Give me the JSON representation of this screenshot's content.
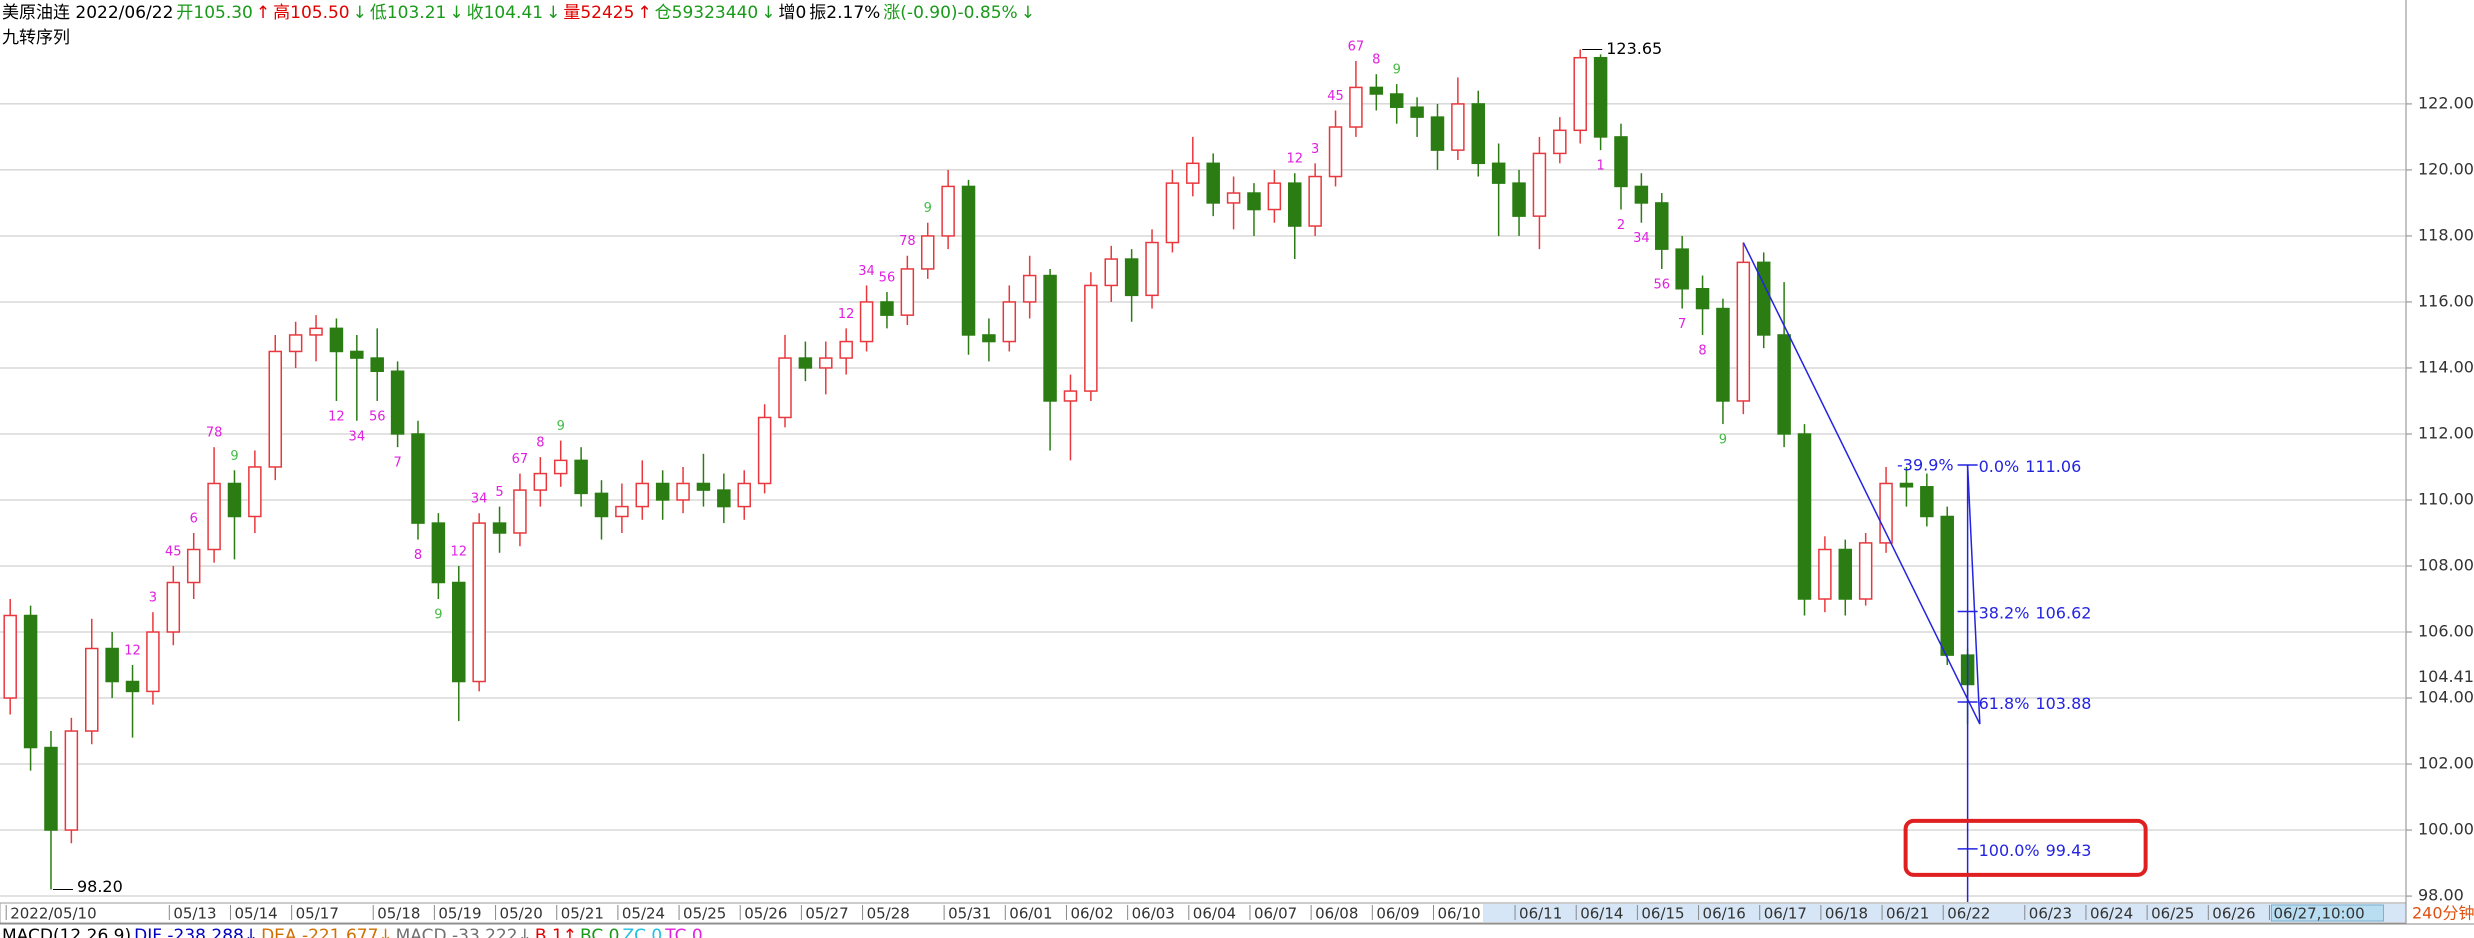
{
  "chart_data": {
    "type": "candlestick",
    "header": [
      {
        "text": "美原油连 2022/06/22",
        "color": "#000000"
      },
      {
        "text": "开105.30",
        "color": "#1a9a1a"
      },
      {
        "text": "↑",
        "color": "#e00000"
      },
      {
        "text": "高105.50",
        "color": "#e00000"
      },
      {
        "text": "↓",
        "color": "#1a9a1a"
      },
      {
        "text": "低103.21",
        "color": "#1a9a1a"
      },
      {
        "text": "↓",
        "color": "#1a9a1a"
      },
      {
        "text": "收104.41",
        "color": "#1a9a1a"
      },
      {
        "text": "↓",
        "color": "#1a9a1a"
      },
      {
        "text": "量52425",
        "color": "#e00000"
      },
      {
        "text": "↑",
        "color": "#e00000"
      },
      {
        "text": "仓59323440",
        "color": "#1a9a1a"
      },
      {
        "text": "↓",
        "color": "#1a9a1a"
      },
      {
        "text": "增0",
        "color": "#000000"
      },
      {
        "text": "振2.17%",
        "color": "#000000"
      },
      {
        "text": "涨(-0.90)-0.85%",
        "color": "#1a9a1a"
      },
      {
        "text": "↓",
        "color": "#1a9a1a"
      }
    ],
    "indicator": "九转序列",
    "footer": [
      {
        "text": "MACD(12,26,9)",
        "color": "#000000"
      },
      {
        "text": "DIF -238.288↓",
        "color": "#0000c0"
      },
      {
        "text": "DEA -221.677↓",
        "color": "#d07000"
      },
      {
        "text": "MACD -33.222↓",
        "color": "#707070"
      },
      {
        "text": "B 1↑",
        "color": "#e00000"
      },
      {
        "text": "BC 0",
        "color": "#1a9a1a"
      },
      {
        "text": "ZC 0",
        "color": "#20c0e0"
      },
      {
        "text": "TC 0",
        "color": "#e020e0"
      }
    ],
    "period": "240分钟",
    "categories": [
      "2022/05/10",
      null,
      null,
      null,
      null,
      null,
      null,
      null,
      "05/13",
      null,
      null,
      "05/14",
      null,
      null,
      "05/17",
      null,
      null,
      null,
      "05/18",
      null,
      null,
      "05/19",
      null,
      null,
      "05/20",
      null,
      null,
      "05/21",
      null,
      null,
      "05/24",
      null,
      null,
      "05/25",
      null,
      null,
      "05/26",
      null,
      null,
      "05/27",
      null,
      null,
      "05/28",
      null,
      null,
      null,
      "05/31",
      null,
      null,
      "06/01",
      null,
      null,
      "06/02",
      null,
      null,
      "06/03",
      null,
      null,
      "06/04",
      null,
      null,
      "06/07",
      null,
      null,
      "06/08",
      null,
      null,
      "06/09",
      null,
      null,
      "06/10",
      null,
      null,
      null,
      "06/11",
      null,
      null,
      "06/14",
      null,
      null,
      "06/15",
      null,
      null,
      "06/16",
      null,
      null,
      "06/17",
      null,
      null,
      "06/18",
      null,
      null,
      "06/21",
      null,
      null,
      "06/22",
      null,
      null,
      null,
      "06/23",
      null,
      null,
      "06/24",
      null,
      null,
      "06/25",
      null,
      null,
      "06/26",
      null,
      null,
      "06/27,10:00",
      null,
      null,
      null,
      null,
      null,
      null
    ],
    "open": [
      104.0,
      106.5,
      102.5,
      100.0,
      103.0,
      105.5,
      104.5,
      104.2,
      106.0,
      107.5,
      108.5,
      110.5,
      109.5,
      111.0,
      114.5,
      115.0,
      115.2,
      114.5,
      114.3,
      113.9,
      112.0,
      109.3,
      107.5,
      104.5,
      109.3,
      109.0,
      110.3,
      110.8,
      111.2,
      110.2,
      109.5,
      109.8,
      110.5,
      110.0,
      110.5,
      110.3,
      109.8,
      110.5,
      112.5,
      114.3,
      114.0,
      114.3,
      114.8,
      116.0,
      115.6,
      117.0,
      118.0,
      119.5,
      115.0,
      114.8,
      116.0,
      116.8,
      113.0,
      113.3,
      116.5,
      117.3,
      116.2,
      117.8,
      119.6,
      120.2,
      119.0,
      119.3,
      118.8,
      119.6,
      118.3,
      119.8,
      121.3,
      122.5,
      122.3,
      121.9,
      121.6,
      120.6,
      122.0,
      120.2,
      119.6,
      118.6,
      120.5,
      121.2,
      123.4,
      121.0,
      119.5,
      119.0,
      117.6,
      116.4,
      115.8,
      113.0,
      117.2,
      115.0,
      112.0,
      107.0,
      108.5,
      107.0,
      108.7,
      110.5,
      110.4,
      109.5,
      105.3,
      null,
      null,
      null,
      null,
      null,
      null,
      null,
      null,
      null,
      null,
      null,
      null,
      null,
      null,
      null,
      null,
      null,
      null,
      null,
      null,
      null
    ],
    "high": [
      107.0,
      106.8,
      103.0,
      103.4,
      106.4,
      106.0,
      105.0,
      106.6,
      108.0,
      109.0,
      111.6,
      110.9,
      111.5,
      115.0,
      115.4,
      115.6,
      115.5,
      115.0,
      115.2,
      114.2,
      112.4,
      109.6,
      108.0,
      109.6,
      109.8,
      110.8,
      111.3,
      111.8,
      111.6,
      110.6,
      110.5,
      111.2,
      110.9,
      111.0,
      111.4,
      110.8,
      110.9,
      112.9,
      115.0,
      114.8,
      114.8,
      115.2,
      116.5,
      116.3,
      117.4,
      118.4,
      120.0,
      119.7,
      115.5,
      116.5,
      117.4,
      117.0,
      113.8,
      116.9,
      117.7,
      117.6,
      118.2,
      120.0,
      121.0,
      120.5,
      119.8,
      119.6,
      120.0,
      119.9,
      120.2,
      121.8,
      123.3,
      122.9,
      122.6,
      122.2,
      122.0,
      122.8,
      122.4,
      120.8,
      120.0,
      121.0,
      121.6,
      123.65,
      123.5,
      121.4,
      119.9,
      119.3,
      118.0,
      116.8,
      116.1,
      117.8,
      117.5,
      116.6,
      112.3,
      108.9,
      108.8,
      109.0,
      111.0,
      111.0,
      110.8,
      109.8,
      105.5,
      null,
      null,
      null,
      null,
      null,
      null,
      null,
      null,
      null,
      null,
      null,
      null,
      null,
      null,
      null,
      null,
      null,
      null,
      null,
      null,
      null
    ],
    "low": [
      103.5,
      101.8,
      98.2,
      99.6,
      102.6,
      104.0,
      102.8,
      103.8,
      105.6,
      107.0,
      108.1,
      108.2,
      109.0,
      110.6,
      114.0,
      114.2,
      113.0,
      112.4,
      113.0,
      111.6,
      108.8,
      107.0,
      103.3,
      104.2,
      108.4,
      108.6,
      109.8,
      110.4,
      109.8,
      108.8,
      109.0,
      109.4,
      109.4,
      109.6,
      109.8,
      109.3,
      109.4,
      110.2,
      112.2,
      113.6,
      113.2,
      113.8,
      114.5,
      115.2,
      115.3,
      116.7,
      117.6,
      114.4,
      114.2,
      114.5,
      115.5,
      111.5,
      111.2,
      113.0,
      116.0,
      115.4,
      115.8,
      117.5,
      119.2,
      118.6,
      118.2,
      118.0,
      118.4,
      117.3,
      118.0,
      119.5,
      121.0,
      121.8,
      121.4,
      121.0,
      120.0,
      120.3,
      119.8,
      118.0,
      118.0,
      117.6,
      120.2,
      120.8,
      120.6,
      118.8,
      118.4,
      117.0,
      115.8,
      115.0,
      112.3,
      112.6,
      114.6,
      111.6,
      106.5,
      106.6,
      106.5,
      106.8,
      108.4,
      109.8,
      109.2,
      105.0,
      103.21,
      null,
      null,
      null,
      null,
      null,
      null,
      null,
      null,
      null,
      null,
      null,
      null,
      null,
      null,
      null,
      null,
      null,
      null,
      null,
      null,
      null
    ],
    "close": [
      106.5,
      102.5,
      100.0,
      103.0,
      105.5,
      104.5,
      104.2,
      106.0,
      107.5,
      108.5,
      110.5,
      109.5,
      111.0,
      114.5,
      115.0,
      115.2,
      114.5,
      114.3,
      113.9,
      112.0,
      109.3,
      107.5,
      104.5,
      109.3,
      109.0,
      110.3,
      110.8,
      111.2,
      110.2,
      109.5,
      109.8,
      110.5,
      110.0,
      110.5,
      110.3,
      109.8,
      110.5,
      112.5,
      114.3,
      114.0,
      114.3,
      114.8,
      116.0,
      115.6,
      117.0,
      118.0,
      119.5,
      115.0,
      114.8,
      116.0,
      116.8,
      113.0,
      113.3,
      116.5,
      117.3,
      116.2,
      117.8,
      119.6,
      120.2,
      119.0,
      119.3,
      118.8,
      119.6,
      118.3,
      119.8,
      121.3,
      122.5,
      122.3,
      121.9,
      121.6,
      120.6,
      122.0,
      120.2,
      119.6,
      118.6,
      120.5,
      121.2,
      123.4,
      121.0,
      119.5,
      119.0,
      117.6,
      116.4,
      115.8,
      113.0,
      117.2,
      115.0,
      112.0,
      107.0,
      108.5,
      107.0,
      108.7,
      110.5,
      110.4,
      109.5,
      105.3,
      104.41,
      null,
      null,
      null,
      null,
      null,
      null,
      null,
      null,
      null,
      null,
      null,
      null,
      null,
      null,
      null,
      null,
      null,
      null,
      null,
      null,
      null
    ],
    "td_sell": [
      null,
      null,
      null,
      null,
      null,
      null,
      "12",
      "3",
      "45",
      "6",
      "78",
      "9",
      null,
      null,
      null,
      null,
      null,
      null,
      null,
      null,
      null,
      null,
      "12",
      "34",
      "5",
      "67",
      "8",
      "9",
      null,
      null,
      null,
      null,
      null,
      null,
      null,
      null,
      null,
      null,
      null,
      null,
      null,
      "12",
      "34",
      "56",
      "78",
      "9",
      null,
      null,
      null,
      null,
      null,
      null,
      null,
      null,
      null,
      null,
      null,
      null,
      null,
      null,
      null,
      null,
      null,
      "12",
      "3",
      "45",
      "67",
      "8",
      "9",
      null,
      null,
      null,
      null,
      null,
      null,
      null,
      null,
      null,
      null,
      null,
      null,
      null,
      null,
      null,
      null,
      null,
      null,
      null,
      null,
      null,
      null,
      null,
      null,
      null,
      null,
      null,
      null,
      null,
      null,
      null,
      null,
      null,
      null,
      null,
      null,
      null,
      null,
      null,
      null,
      null,
      null,
      null,
      null,
      null,
      null,
      null,
      null,
      null
    ],
    "td_buy": [
      null,
      null,
      null,
      null,
      null,
      null,
      null,
      null,
      null,
      null,
      null,
      null,
      null,
      null,
      null,
      null,
      "12",
      "34",
      "56",
      "7",
      "8",
      "9",
      null,
      null,
      null,
      null,
      null,
      null,
      null,
      null,
      null,
      null,
      null,
      null,
      null,
      null,
      null,
      null,
      null,
      null,
      null,
      null,
      null,
      null,
      null,
      null,
      null,
      null,
      null,
      null,
      null,
      null,
      null,
      null,
      null,
      null,
      null,
      null,
      null,
      null,
      null,
      null,
      null,
      null,
      null,
      null,
      null,
      null,
      null,
      null,
      null,
      null,
      null,
      null,
      null,
      null,
      null,
      null,
      "1",
      "2",
      "34",
      "56",
      "7",
      "8",
      "9",
      null,
      null,
      null,
      null,
      null,
      null,
      null,
      null,
      null,
      null,
      null,
      null,
      null,
      null,
      null,
      null,
      null,
      null,
      null,
      null,
      null,
      null,
      null,
      null,
      null,
      null,
      null,
      null,
      null,
      null,
      null,
      null,
      null
    ],
    "td_color": "#e020e0",
    "td_colors": {
      "9": "#44bb44"
    },
    "max_marker": 123.65,
    "min_marker": {
      "value": 98.2,
      "label": "98.20"
    },
    "fib_levels": [
      {
        "label": "0.0%",
        "value": 111.06
      },
      {
        "label": "38.2%",
        "value": 106.62
      },
      {
        "label": "61.8%",
        "value": 103.88
      },
      {
        "label": "100.0%",
        "value": 99.43
      }
    ],
    "fib_change": "-39.9%",
    "ylim": [
      97.82,
      124.3
    ],
    "yticks": [
      {
        "value": 98,
        "label": "98.00"
      },
      {
        "value": 100,
        "label": "100.00"
      },
      {
        "value": 102,
        "label": "102.00"
      },
      {
        "value": 104,
        "label": "104.00"
      },
      {
        "value": 106,
        "label": "106.00"
      },
      {
        "value": 108,
        "label": "108.00"
      },
      {
        "value": 110,
        "label": "110.00"
      },
      {
        "value": 112,
        "label": "112.00"
      },
      {
        "value": 114,
        "label": "114.00"
      },
      {
        "value": 116,
        "label": "116.00"
      },
      {
        "value": 118,
        "label": "118.00"
      },
      {
        "value": 120,
        "label": "120.00"
      },
      {
        "value": 122,
        "label": "122.00"
      }
    ],
    "grid": true,
    "up_color": "#e8383d",
    "down_color": "#2b7d13",
    "grid_color": "#c4c4c4",
    "drawing_color": "#2424e0",
    "last_price_color": "#e00000"
  }
}
